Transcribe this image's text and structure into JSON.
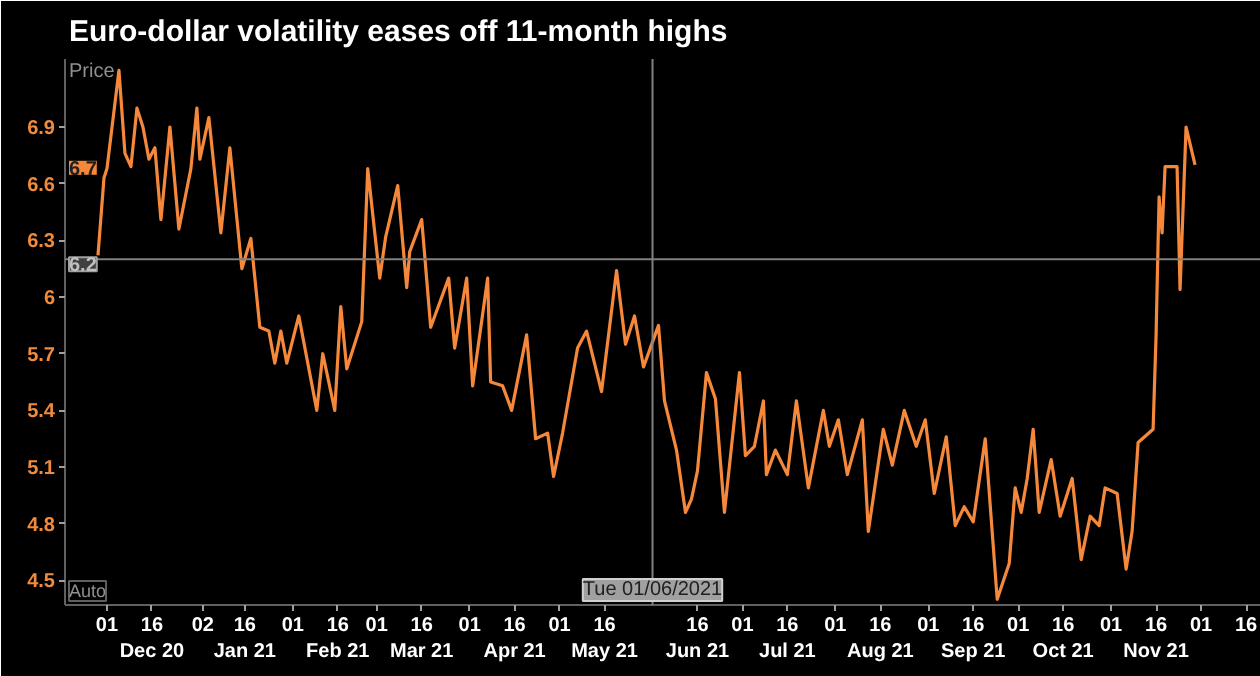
{
  "chart_data": {
    "type": "line",
    "title": "Euro-dollar volatility eases off 11-month highs",
    "ylabel": "Price",
    "x": [
      "2020-11-28",
      "2020-11-30",
      "2020-12-01",
      "2020-12-05",
      "2020-12-07",
      "2020-12-09",
      "2020-12-11",
      "2020-12-13",
      "2020-12-15",
      "2020-12-17",
      "2020-12-19",
      "2020-12-22",
      "2020-12-25",
      "2020-12-29",
      "2020-12-31",
      "2021-01-01",
      "2021-01-04",
      "2021-01-08",
      "2021-01-11",
      "2021-01-15",
      "2021-01-18",
      "2021-01-21",
      "2021-01-24",
      "2021-01-26",
      "2021-01-28",
      "2021-01-30",
      "2021-02-03",
      "2021-02-09",
      "2021-02-11",
      "2021-02-15",
      "2021-02-17",
      "2021-02-19",
      "2021-02-24",
      "2021-02-26",
      "2021-03-02",
      "2021-03-04",
      "2021-03-08",
      "2021-03-11",
      "2021-03-12",
      "2021-03-16",
      "2021-03-19",
      "2021-03-25",
      "2021-03-27",
      "2021-03-31",
      "2021-04-02",
      "2021-04-07",
      "2021-04-08",
      "2021-04-12",
      "2021-04-15",
      "2021-04-20",
      "2021-04-23",
      "2021-04-27",
      "2021-04-29",
      "2021-05-02",
      "2021-05-07",
      "2021-05-10",
      "2021-05-15",
      "2021-05-20",
      "2021-05-23",
      "2021-05-26",
      "2021-05-29",
      "2021-06-03",
      "2021-06-05",
      "2021-06-09",
      "2021-06-12",
      "2021-06-14",
      "2021-06-16",
      "2021-06-19",
      "2021-06-22",
      "2021-06-25",
      "2021-06-30",
      "2021-07-02",
      "2021-07-05",
      "2021-07-08",
      "2021-07-09",
      "2021-07-12",
      "2021-07-16",
      "2021-07-19",
      "2021-07-23",
      "2021-07-28",
      "2021-07-30",
      "2021-08-02",
      "2021-08-05",
      "2021-08-10",
      "2021-08-12",
      "2021-08-17",
      "2021-08-20",
      "2021-08-24",
      "2021-08-28",
      "2021-08-31",
      "2021-09-03",
      "2021-09-07",
      "2021-09-10",
      "2021-09-13",
      "2021-09-16",
      "2021-09-20",
      "2021-09-24",
      "2021-09-28",
      "2021-09-30",
      "2021-10-02",
      "2021-10-04",
      "2021-10-06",
      "2021-10-08",
      "2021-10-12",
      "2021-10-15",
      "2021-10-19",
      "2021-10-22",
      "2021-10-25",
      "2021-10-28",
      "2021-10-30",
      "2021-11-03",
      "2021-11-06",
      "2021-11-08",
      "2021-11-10",
      "2021-11-15",
      "2021-11-16",
      "2021-11-17",
      "2021-11-18",
      "2021-11-19",
      "2021-11-23",
      "2021-11-24",
      "2021-11-26",
      "2021-11-29"
    ],
    "series": [
      {
        "color": "#f5883a",
        "values": [
          6.22,
          6.63,
          6.68,
          7.2,
          6.76,
          6.69,
          7.0,
          6.9,
          6.73,
          6.79,
          6.41,
          6.9,
          6.36,
          6.68,
          7.0,
          6.73,
          6.95,
          6.34,
          6.79,
          6.15,
          6.31,
          5.84,
          5.82,
          5.65,
          5.82,
          5.65,
          5.9,
          5.4,
          5.7,
          5.4,
          5.95,
          5.62,
          5.87,
          6.68,
          6.1,
          6.32,
          6.59,
          6.05,
          6.24,
          6.41,
          5.84,
          6.1,
          5.73,
          6.1,
          5.53,
          6.1,
          5.55,
          5.53,
          5.4,
          5.8,
          5.25,
          5.28,
          5.05,
          5.28,
          5.73,
          5.82,
          5.5,
          6.14,
          5.75,
          5.9,
          5.63,
          5.85,
          5.45,
          5.19,
          4.86,
          4.93,
          5.08,
          5.6,
          5.46,
          4.86,
          5.6,
          5.16,
          5.21,
          5.45,
          5.06,
          5.19,
          5.06,
          5.45,
          4.99,
          5.4,
          5.21,
          5.35,
          5.06,
          5.35,
          4.76,
          5.3,
          5.11,
          5.4,
          5.21,
          5.35,
          4.96,
          5.26,
          4.79,
          4.89,
          4.81,
          5.25,
          4.4,
          4.59,
          4.99,
          4.86,
          5.04,
          5.3,
          4.86,
          5.14,
          4.84,
          5.04,
          4.61,
          4.84,
          4.79,
          4.99,
          4.96,
          4.56,
          4.76,
          5.23,
          5.3,
          5.8,
          6.53,
          6.34,
          6.69,
          6.69,
          6.04,
          6.9,
          6.7
        ]
      }
    ],
    "xlim": [
      "2020-11-17",
      "2021-12-21"
    ],
    "ylim": [
      4.37,
      7.26
    ],
    "yticks": [
      4.5,
      4.8,
      5.1,
      5.4,
      5.7,
      6,
      6.3,
      6.6,
      6.9
    ],
    "xticks": [
      {
        "value": "2020-12-01",
        "label": "01"
      },
      {
        "value": "2020-12-16",
        "label": "16\nDec 20"
      },
      {
        "value": "2021-01-02",
        "label": "02"
      },
      {
        "value": "2021-01-16",
        "label": "16\nJan 21"
      },
      {
        "value": "2021-02-01",
        "label": "01"
      },
      {
        "value": "2021-02-16",
        "label": "16\nFeb 21"
      },
      {
        "value": "2021-03-01",
        "label": "01"
      },
      {
        "value": "2021-03-16",
        "label": "16\nMar 21"
      },
      {
        "value": "2021-04-01",
        "label": "01"
      },
      {
        "value": "2021-04-16",
        "label": "16\nApr 21"
      },
      {
        "value": "2021-05-01",
        "label": "01"
      },
      {
        "value": "2021-05-16",
        "label": "16\nMay 21"
      },
      {
        "value": "2021-06-16",
        "label": "16\nJun 21"
      },
      {
        "value": "2021-07-01",
        "label": "01"
      },
      {
        "value": "2021-07-16",
        "label": "16\nJul 21"
      },
      {
        "value": "2021-08-01",
        "label": "01"
      },
      {
        "value": "2021-08-16",
        "label": "16\nAug 21"
      },
      {
        "value": "2021-09-01",
        "label": "01"
      },
      {
        "value": "2021-09-16",
        "label": "16\nSep 21"
      },
      {
        "value": "2021-10-01",
        "label": "01"
      },
      {
        "value": "2021-10-16",
        "label": "16\nOct 21"
      },
      {
        "value": "2021-11-01",
        "label": "01"
      },
      {
        "value": "2021-11-16",
        "label": "16\nNov 21"
      },
      {
        "value": "2021-12-01",
        "label": "01"
      },
      {
        "value": "2021-12-16",
        "label": "16"
      }
    ],
    "ref_lines": [
      {
        "axis": "x",
        "value": "2021-06-01",
        "label": "Tue 01/06/2021",
        "color": "#808080"
      },
      {
        "axis": "y",
        "value": 6.2,
        "label": "6.2",
        "color": "#808080"
      }
    ],
    "annotations": [
      {
        "text": "6.7",
        "y": 6.7
      },
      "Auto"
    ],
    "grid": false,
    "marker": "none",
    "line_style": "solid"
  }
}
